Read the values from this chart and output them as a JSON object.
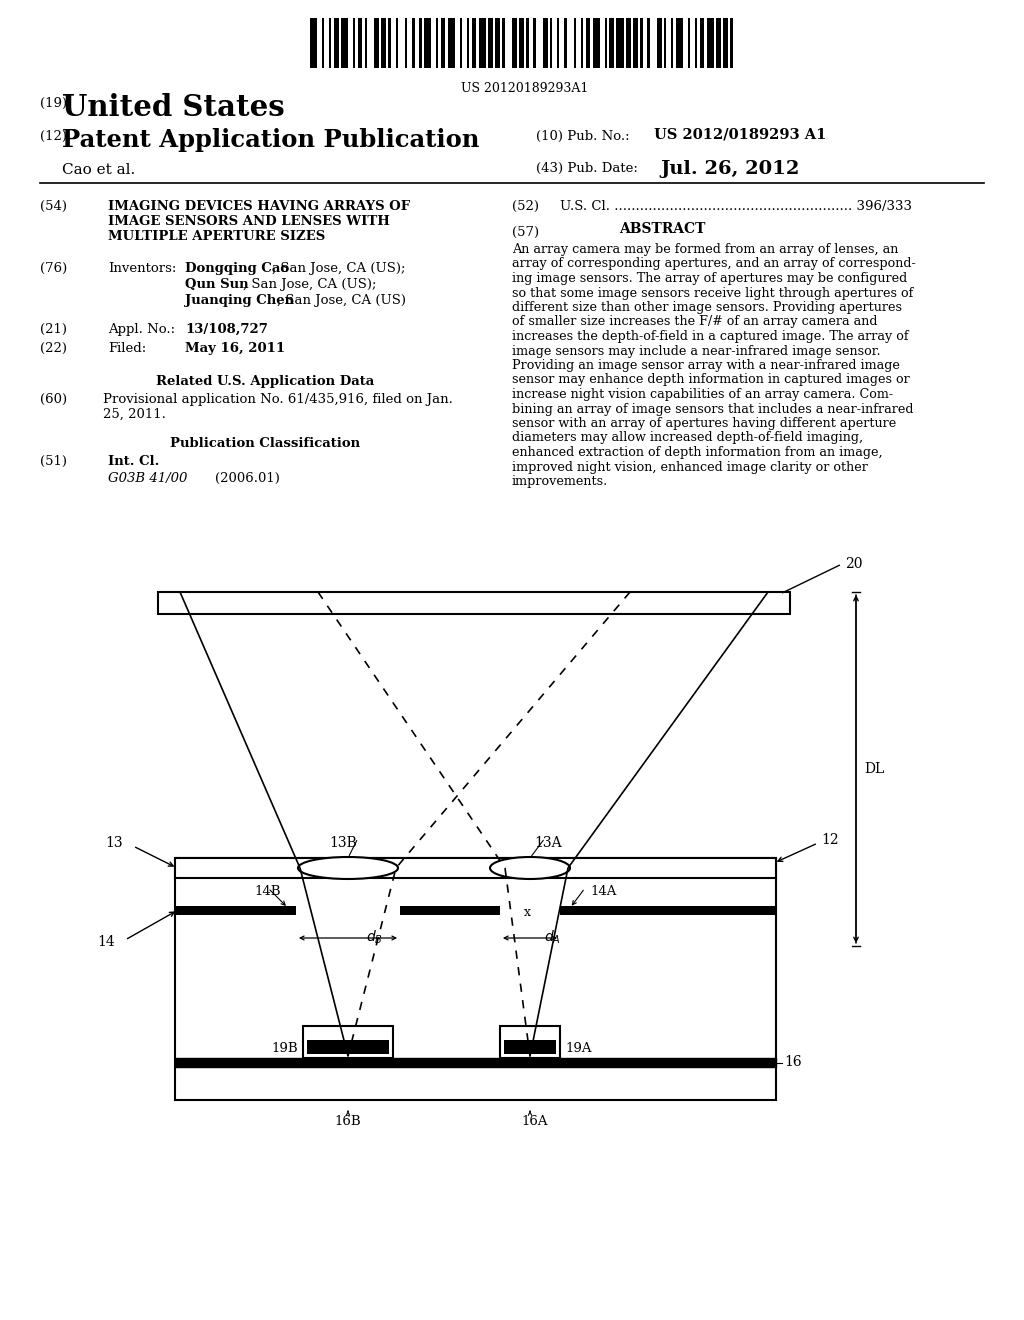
{
  "bg_color": "#ffffff",
  "barcode_text": "US 20120189293A1",
  "title_19": "(19)",
  "title_us": "United States",
  "title_12": "(12)",
  "title_pat": "Patent Application Publication",
  "title_cao": "Cao et al.",
  "pub_no_label": "(10) Pub. No.:",
  "pub_no": "US 2012/0189293 A1",
  "pub_date_label": "(43) Pub. Date:",
  "pub_date": "Jul. 26, 2012",
  "field54_num": "(54)",
  "field54_line1": "IMAGING DEVICES HAVING ARRAYS OF",
  "field54_line2": "IMAGE SENSORS AND LENSES WITH",
  "field54_line3": "MULTIPLE APERTURE SIZES",
  "field52": "U.S. Cl. ........................................................ 396/333",
  "field57_title": "ABSTRACT",
  "abstract_text": "An array camera may be formed from an array of lenses, an array of corresponding apertures, and an array of corresponding image sensors. The array of apertures may be configured so that some image sensors receive light through apertures of different size than other image sensors. Providing apertures of smaller size increases the F/# of an array camera and increases the depth-of-field in a captured image. The array of image sensors may include a near-infrared image sensor. Providing an image sensor array with a near-infrared image sensor may enhance depth information in captured images or increase night vision capabilities of an array camera. Combining an array of image sensors that includes a near-infrared sensor with an array of apertures having different aperture diameters may allow increased depth-of-field imaging, enhanced extraction of depth information from an image, improved night vision, enhanced image clarity or other improvements.",
  "field76_label": "Inventors:",
  "inv1_name": "Dongqing Cao",
  "inv1_loc": ", San Jose, CA (US);",
  "inv2_name": "Qun Sun",
  "inv2_loc": ", San Jose, CA (US);",
  "inv3_name": "Juanqing Chen",
  "inv3_loc": ", San Jose, CA (US)",
  "field21_label": "Appl. No.:",
  "field21_val": "13/108,727",
  "field22_label": "Filed:",
  "field22_val": "May 16, 2011",
  "related_title": "Related U.S. Application Data",
  "field60_val1": "Provisional application No. 61/435,916, filed on Jan.",
  "field60_val2": "25, 2011.",
  "pub_class_title": "Publication Classification",
  "field51_label": "Int. Cl.",
  "field51_class": "G03B 41/00",
  "field51_year": "(2006.01)"
}
